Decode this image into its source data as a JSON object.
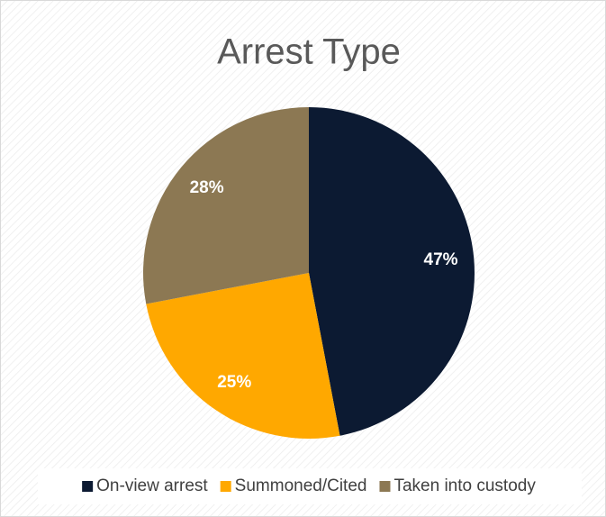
{
  "chart_data": {
    "type": "pie",
    "title": "Arrest Type",
    "categories": [
      "On-view arrest",
      "Summoned/Cited",
      "Taken into custody"
    ],
    "values": [
      47,
      25,
      28
    ],
    "value_labels": [
      "47%",
      "25%",
      "28%"
    ],
    "colors": [
      "#0c1a32",
      "#ffa800",
      "#8c7853"
    ],
    "legend": "bottom"
  }
}
